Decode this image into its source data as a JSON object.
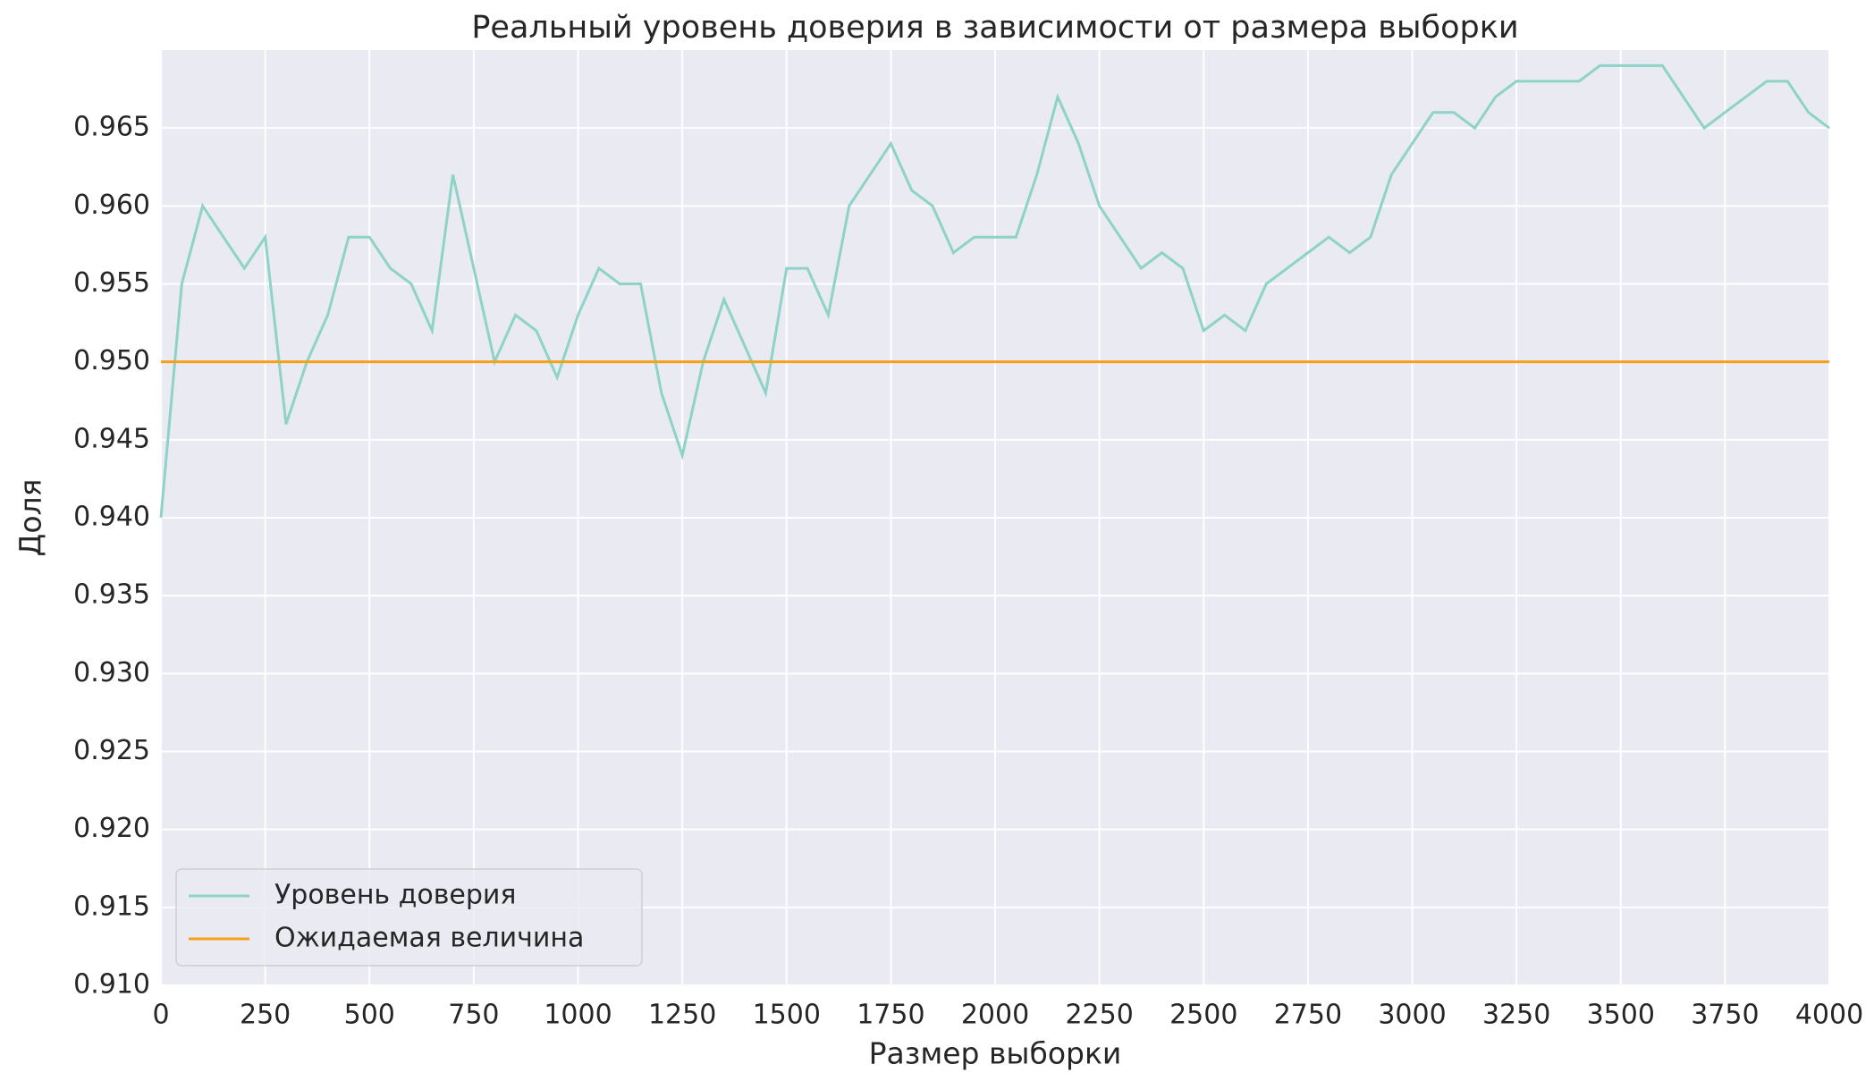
{
  "chart_data": {
    "type": "line",
    "title": "Реальный уровень доверия в зависимости от размера выборки",
    "x_label": "Размер выборки",
    "y_label": "Доля",
    "x": [
      0,
      50,
      100,
      150,
      200,
      250,
      300,
      350,
      400,
      450,
      500,
      550,
      600,
      650,
      700,
      750,
      800,
      850,
      900,
      950,
      1000,
      1050,
      1100,
      1150,
      1200,
      1250,
      1300,
      1350,
      1400,
      1450,
      1500,
      1550,
      1600,
      1650,
      1700,
      1750,
      1800,
      1850,
      1900,
      1950,
      2000,
      2050,
      2100,
      2150,
      2200,
      2250,
      2300,
      2350,
      2400,
      2450,
      2500,
      2550,
      2600,
      2650,
      2700,
      2750,
      2800,
      2850,
      2900,
      2950,
      3000,
      3050,
      3100,
      3150,
      3200,
      3250,
      3300,
      3350,
      3400,
      3450,
      3500,
      3550,
      3600,
      3650,
      3700,
      3750,
      3800,
      3850,
      3900,
      3950,
      4000
    ],
    "series": [
      {
        "name": "Уровень доверия",
        "color": "#8dd3c7",
        "values": [
          0.94,
          0.955,
          0.96,
          0.958,
          0.956,
          0.958,
          0.946,
          0.95,
          0.953,
          0.958,
          0.958,
          0.956,
          0.955,
          0.952,
          0.962,
          0.956,
          0.95,
          0.953,
          0.952,
          0.949,
          0.953,
          0.956,
          0.955,
          0.955,
          0.948,
          0.944,
          0.95,
          0.954,
          0.951,
          0.948,
          0.956,
          0.956,
          0.953,
          0.96,
          0.962,
          0.964,
          0.961,
          0.96,
          0.957,
          0.958,
          0.958,
          0.958,
          0.962,
          0.967,
          0.964,
          0.96,
          0.958,
          0.956,
          0.957,
          0.956,
          0.952,
          0.953,
          0.952,
          0.955,
          0.956,
          0.957,
          0.958,
          0.957,
          0.958,
          0.962,
          0.964,
          0.966,
          0.966,
          0.965,
          0.967,
          0.968,
          0.968,
          0.968,
          0.968,
          0.969,
          0.969,
          0.969,
          0.969,
          0.967,
          0.965,
          0.966,
          0.967,
          0.968,
          0.968,
          0.966,
          0.965
        ]
      }
    ],
    "reference_line": {
      "name": "Ожидаемая величина",
      "value": 0.95,
      "color": "#f5a01a"
    },
    "xlim": [
      0,
      4000
    ],
    "ylim": [
      0.91,
      0.97
    ],
    "xticks": [
      0,
      250,
      500,
      750,
      1000,
      1250,
      1500,
      1750,
      2000,
      2250,
      2500,
      2750,
      3000,
      3250,
      3500,
      3750,
      4000
    ],
    "yticks": [
      {
        "value": 0.91,
        "label": "0.910"
      },
      0.915,
      {
        "value": 0.92,
        "label": "0.920"
      },
      0.925,
      {
        "value": 0.93,
        "label": "0.930"
      },
      0.935,
      {
        "value": 0.94,
        "label": "0.940"
      },
      0.945,
      {
        "value": 0.95,
        "label": "0.950"
      },
      0.955,
      {
        "value": 0.96,
        "label": "0.960"
      },
      0.965
    ],
    "grid": true,
    "legend": "lower left"
  }
}
